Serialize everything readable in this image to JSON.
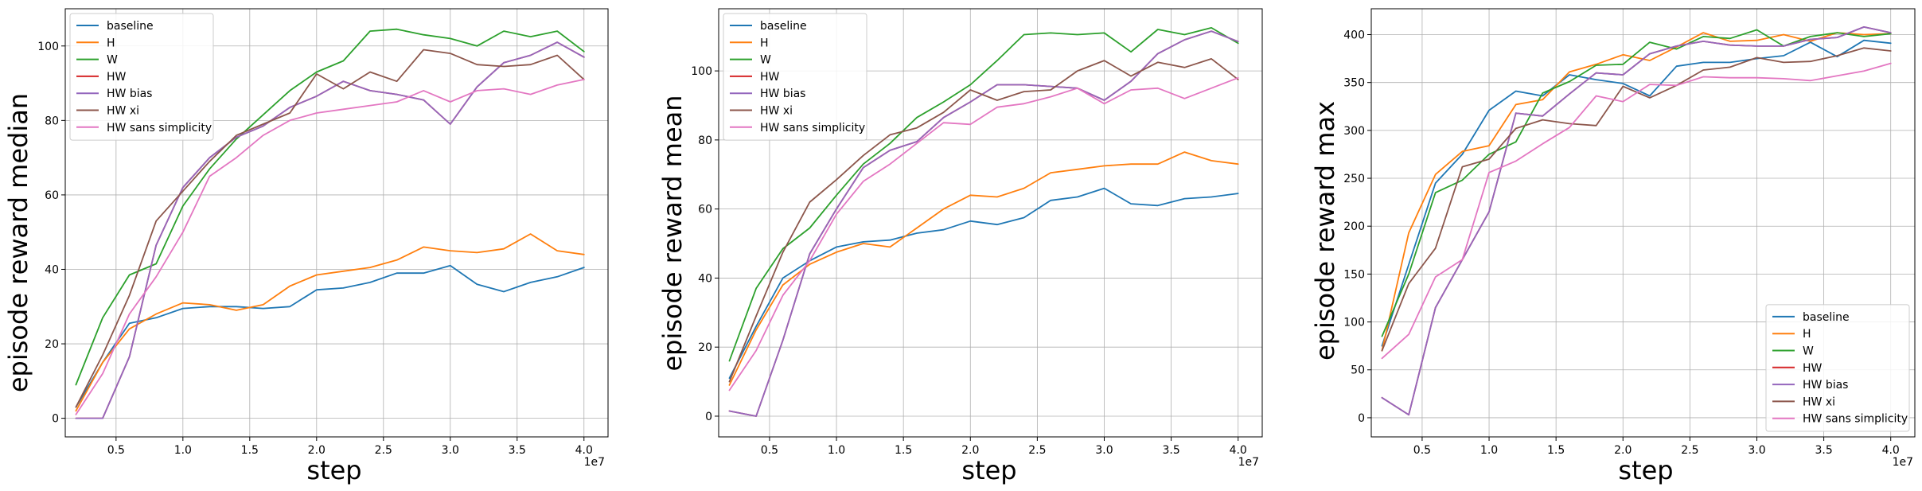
{
  "chart_data": [
    {
      "type": "line",
      "ylabel": "episode reward median",
      "xlabel": "step",
      "x_offset_label": "1e7",
      "xlim": [
        0.12,
        4.18
      ],
      "ylim": [
        -5,
        110
      ],
      "xticks": [
        0.5,
        1.0,
        1.5,
        2.0,
        2.5,
        3.0,
        3.5,
        4.0
      ],
      "xtick_labels": [
        "0.5",
        "1.0",
        "1.5",
        "2.0",
        "2.5",
        "3.0",
        "3.5",
        "4.0"
      ],
      "yticks": [
        0,
        20,
        40,
        60,
        80,
        100
      ],
      "ytick_labels": [
        "0",
        "20",
        "40",
        "60",
        "80",
        "100"
      ],
      "grid": true,
      "legend_position": "top-left",
      "x": [
        0.2,
        0.4,
        0.6,
        0.8,
        1.0,
        1.2,
        1.4,
        1.6,
        1.8,
        2.0,
        2.2,
        2.4,
        2.6,
        2.8,
        3.0,
        3.2,
        3.4,
        3.6,
        3.8,
        4.0
      ],
      "series": [
        {
          "name": "baseline",
          "color": "#1f77b4",
          "values": [
            3,
            15,
            25.5,
            27,
            29.5,
            30,
            30,
            29.5,
            30,
            34.5,
            35,
            36.5,
            39,
            39,
            41,
            36,
            34,
            36.5,
            38,
            40.5
          ]
        },
        {
          "name": "H",
          "color": "#ff7f0e",
          "values": [
            2,
            15,
            24,
            28,
            31,
            30.5,
            29,
            30.5,
            35.5,
            38.5,
            39.5,
            40.5,
            42.5,
            46,
            45,
            44.5,
            45.5,
            49.5,
            45,
            44
          ]
        },
        {
          "name": "W",
          "color": "#2ca02c",
          "values": [
            9,
            27,
            38.5,
            41.5,
            57,
            67,
            75,
            81.5,
            88,
            93,
            96,
            104,
            104.5,
            103,
            102,
            100,
            104,
            102.5,
            104,
            98.5
          ]
        },
        {
          "name": "HW",
          "color": "#d62728",
          "values": [
            0,
            0,
            16.5,
            46.5,
            62,
            70,
            75.5,
            78.5,
            83.5,
            86.5,
            90.5,
            88,
            87,
            85.5,
            79,
            89,
            95.5,
            97.5,
            101,
            97
          ]
        },
        {
          "name": "HW bias",
          "color": "#9467bd",
          "values": [
            0,
            0,
            16.5,
            46.5,
            62,
            70,
            75.5,
            78.5,
            83.5,
            86.5,
            90.5,
            88,
            87,
            85.5,
            79,
            89,
            95.5,
            97.5,
            101,
            97
          ]
        },
        {
          "name": "HW xi",
          "color": "#8c564b",
          "values": [
            3,
            17,
            33,
            53,
            61,
            69,
            76,
            79,
            82,
            92.5,
            88.5,
            93,
            90.5,
            99,
            98,
            95,
            94.5,
            95,
            97.5,
            91
          ]
        },
        {
          "name": "HW sans simplicity",
          "color": "#e377c2",
          "values": [
            1,
            12,
            28,
            38,
            50,
            65,
            70,
            76,
            80,
            82,
            83,
            84,
            85,
            88,
            85,
            88,
            88.5,
            87,
            89.5,
            91
          ]
        }
      ]
    },
    {
      "type": "line",
      "ylabel": "episode reward mean",
      "xlabel": "step",
      "x_offset_label": "1e7",
      "xlim": [
        0.12,
        4.18
      ],
      "ylim": [
        -6,
        118
      ],
      "xticks": [
        0.5,
        1.0,
        1.5,
        2.0,
        2.5,
        3.0,
        3.5,
        4.0
      ],
      "xtick_labels": [
        "0.5",
        "1.0",
        "1.5",
        "2.0",
        "2.5",
        "3.0",
        "3.5",
        "4.0"
      ],
      "yticks": [
        0,
        20,
        40,
        60,
        80,
        100
      ],
      "ytick_labels": [
        "0",
        "20",
        "40",
        "60",
        "80",
        "100"
      ],
      "grid": true,
      "legend_position": "top-left",
      "x": [
        0.2,
        0.4,
        0.6,
        0.8,
        1.0,
        1.2,
        1.4,
        1.6,
        1.8,
        2.0,
        2.2,
        2.4,
        2.6,
        2.8,
        3.0,
        3.2,
        3.4,
        3.6,
        3.8,
        4.0
      ],
      "series": [
        {
          "name": "baseline",
          "color": "#1f77b4",
          "values": [
            11,
            26,
            40,
            45,
            49,
            50.5,
            51,
            53,
            54,
            56.5,
            55.5,
            57.5,
            62.5,
            63.5,
            66,
            61.5,
            61,
            63,
            63.5,
            64.5
          ]
        },
        {
          "name": "H",
          "color": "#ff7f0e",
          "values": [
            9,
            25,
            38,
            44,
            47.5,
            50,
            49,
            54.5,
            60,
            64,
            63.5,
            66,
            70.5,
            71.5,
            72.5,
            73,
            73,
            76.5,
            74,
            73
          ]
        },
        {
          "name": "W",
          "color": "#2ca02c",
          "values": [
            16,
            37,
            48.5,
            54.5,
            64,
            73,
            79,
            86.5,
            91,
            96,
            103,
            110.5,
            111,
            110.5,
            111,
            105.5,
            112,
            110.5,
            112.5,
            108
          ]
        },
        {
          "name": "HW",
          "color": "#d62728",
          "values": [
            1.5,
            0,
            22,
            47,
            60,
            72,
            77,
            79.5,
            86.5,
            91,
            96,
            96,
            95.5,
            95,
            91.5,
            97,
            105,
            109,
            111.5,
            108.5
          ]
        },
        {
          "name": "HW bias",
          "color": "#9467bd",
          "values": [
            1.5,
            0,
            22,
            47,
            60,
            72,
            77,
            79.5,
            86.5,
            91,
            96,
            96,
            95.5,
            95,
            91.5,
            97,
            105,
            109,
            111.5,
            108.5
          ]
        },
        {
          "name": "HW xi",
          "color": "#8c564b",
          "values": [
            10,
            29,
            47.5,
            62,
            68.5,
            75.5,
            81.5,
            83.5,
            88,
            94.5,
            91.5,
            94,
            94.5,
            100,
            103,
            98.5,
            102.5,
            101,
            103.5,
            97.5
          ]
        },
        {
          "name": "HW sans simplicity",
          "color": "#e377c2",
          "values": [
            7.5,
            19,
            35,
            45,
            58.5,
            68,
            73,
            79,
            85,
            84.5,
            89.5,
            90.5,
            92.5,
            95,
            90.5,
            94.5,
            95,
            92,
            95,
            98
          ]
        }
      ]
    },
    {
      "type": "line",
      "ylabel": "episode reward max",
      "xlabel": "step",
      "x_offset_label": "1e7",
      "xlim": [
        0.12,
        4.18
      ],
      "ylim": [
        -20,
        427
      ],
      "xticks": [
        0.5,
        1.0,
        1.5,
        2.0,
        2.5,
        3.0,
        3.5,
        4.0
      ],
      "xtick_labels": [
        "0.5",
        "1.0",
        "1.5",
        "2.0",
        "2.5",
        "3.0",
        "3.5",
        "4.0"
      ],
      "yticks": [
        0,
        50,
        100,
        150,
        200,
        250,
        300,
        350,
        400
      ],
      "ytick_labels": [
        "0",
        "50",
        "100",
        "150",
        "200",
        "250",
        "300",
        "350",
        "400"
      ],
      "grid": true,
      "legend_position": "bottom-right",
      "x": [
        0.2,
        0.4,
        0.6,
        0.8,
        1.0,
        1.2,
        1.4,
        1.6,
        1.8,
        2.0,
        2.2,
        2.4,
        2.6,
        2.8,
        3.0,
        3.2,
        3.4,
        3.6,
        3.8,
        4.0
      ],
      "series": [
        {
          "name": "baseline",
          "color": "#1f77b4",
          "values": [
            75,
            160,
            245,
            275,
            321,
            341,
            336,
            358,
            353,
            349,
            336,
            367,
            371,
            371,
            375,
            378,
            392,
            377,
            394,
            391
          ]
        },
        {
          "name": "H",
          "color": "#ff7f0e",
          "values": [
            70,
            193,
            254,
            278,
            284,
            327,
            332,
            361,
            369,
            379,
            373,
            387,
            402,
            393,
            394,
            400,
            393,
            402,
            400,
            401
          ]
        },
        {
          "name": "W",
          "color": "#2ca02c",
          "values": [
            85,
            150,
            235,
            248,
            275,
            288,
            339,
            351,
            368,
            369,
            392,
            385,
            398,
            396,
            405,
            388,
            398,
            402,
            398,
            401
          ]
        },
        {
          "name": "HW",
          "color": "#d62728",
          "values": [
            21,
            3,
            115,
            165,
            215,
            318,
            315,
            338,
            360,
            358,
            380,
            388,
            393,
            389,
            388,
            388,
            395,
            397,
            408,
            402
          ]
        },
        {
          "name": "HW bias",
          "color": "#9467bd",
          "values": [
            21,
            3,
            115,
            165,
            215,
            318,
            315,
            338,
            360,
            358,
            380,
            388,
            393,
            389,
            388,
            388,
            395,
            397,
            408,
            402
          ]
        },
        {
          "name": "HW xi",
          "color": "#8c564b",
          "values": [
            70,
            140,
            177,
            262,
            270,
            302,
            311,
            307,
            305,
            346,
            334,
            347,
            363,
            366,
            376,
            371,
            372,
            378,
            386,
            383
          ]
        },
        {
          "name": "HW sans simplicity",
          "color": "#e377c2",
          "values": [
            62,
            87,
            147,
            165,
            256,
            268,
            286,
            303,
            336,
            330,
            348,
            347,
            356,
            355,
            355,
            354,
            352,
            357,
            362,
            370
          ]
        }
      ]
    }
  ]
}
